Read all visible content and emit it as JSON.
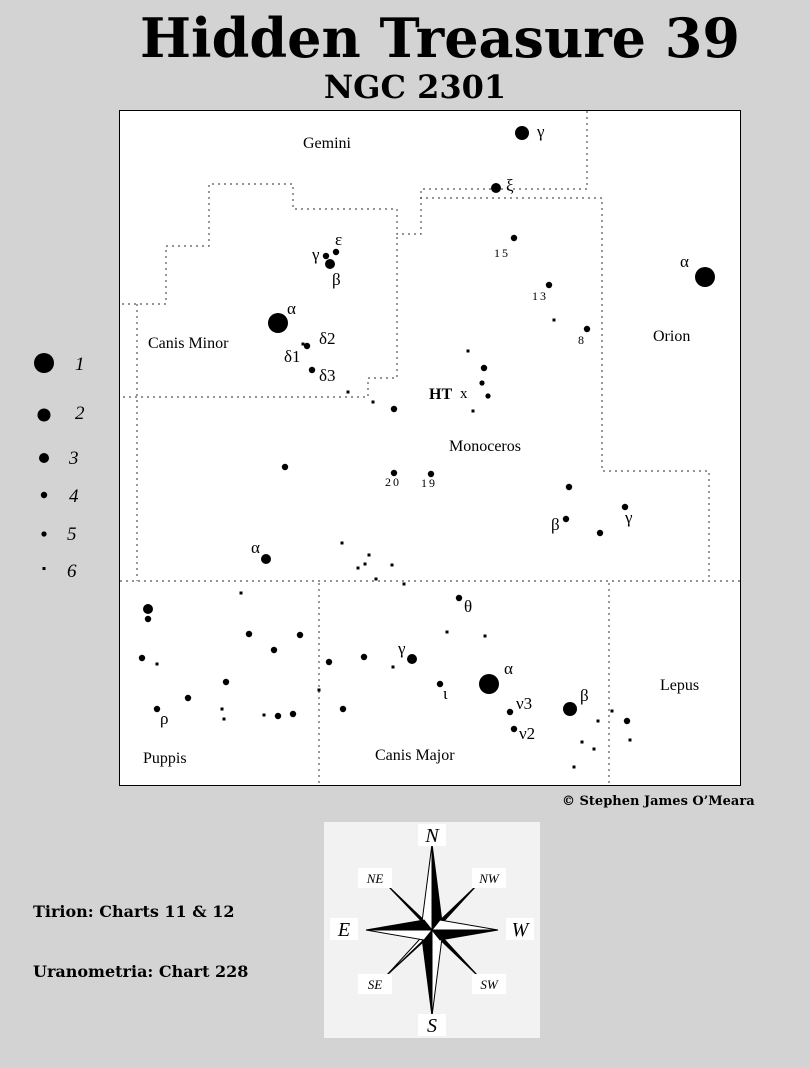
{
  "title": "Hidden Treasure 39",
  "subtitle": "NGC  2301",
  "copyright": "© Stephen James O’Meara",
  "references": [
    "Tirion: Charts 11 & 12",
    "Uranometria: Chart 228"
  ],
  "constellations": {
    "gemini": "Gemini",
    "canis_minor": "Canis Minor",
    "orion": "Orion",
    "monoceros": "Monoceros",
    "puppis": "Puppis",
    "canis_major": "Canis Major",
    "lepus": "Lepus"
  },
  "target_label": "HT",
  "target_marker": "x",
  "star_labels": {
    "gem_gamma": "γ",
    "gem_xi": "ξ",
    "cmi_gamma": "γ",
    "cmi_epsilon": "ε",
    "cmi_beta": "β",
    "cmi_alpha": "α",
    "cmi_delta1": "δ1",
    "cmi_delta2": "δ2",
    "cmi_delta3": "δ3",
    "mon_15": "15",
    "mon_13": "13",
    "mon_8": "8",
    "ori_alpha": "α",
    "mon_20": "20",
    "mon_19": "19",
    "mon_beta": "β",
    "mon_gamma": "γ",
    "mon_alpha": "α",
    "cma_theta": "θ",
    "cma_gamma": "γ",
    "cma_alpha": "α",
    "cma_iota": "ι",
    "cma_nu3": "ν3",
    "cma_nu2": "ν2",
    "lep_beta": "β",
    "pup_rho": "ρ"
  },
  "legend": [
    {
      "label": "1"
    },
    {
      "label": "2"
    },
    {
      "label": "3"
    },
    {
      "label": "4"
    },
    {
      "label": "5"
    },
    {
      "label": "6"
    }
  ],
  "compass": {
    "n": "N",
    "s": "S",
    "e": "E",
    "w": "W",
    "ne": "NE",
    "nw": "NW",
    "se": "SE",
    "sw": "SW"
  }
}
